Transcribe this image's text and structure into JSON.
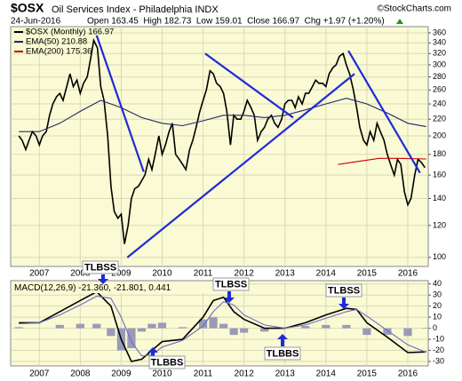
{
  "chart_data": [
    {
      "type": "line",
      "title": "$OSX",
      "subtitle": "Oil Services Index - Philadelphia INDX",
      "source": "©StockCharts.com",
      "date": "24-Jun-2016",
      "stats": "Open 163.45  High 182.73  Low 159.01  Close 166.97  Chg +1.97 (+1.20%)",
      "log_scale": true,
      "grid": true,
      "ylim": [
        95,
        373
      ],
      "yticks": [
        100,
        120,
        140,
        160,
        180,
        200,
        220,
        240,
        260,
        280,
        300,
        320,
        340,
        360
      ],
      "xlim": [
        2006.3,
        2016.5
      ],
      "xticks": [
        2007,
        2008,
        2009,
        2010,
        2011,
        2012,
        2013,
        2014,
        2015,
        2016
      ],
      "series": [
        {
          "name": "$OSX (Monthly) 166.97",
          "color": "#000000",
          "x": [
            2006.5,
            2006.58,
            2006.67,
            2006.75,
            2006.83,
            2006.92,
            2007,
            2007.08,
            2007.17,
            2007.25,
            2007.33,
            2007.42,
            2007.5,
            2007.58,
            2007.67,
            2007.75,
            2007.83,
            2007.92,
            2008,
            2008.08,
            2008.17,
            2008.25,
            2008.33,
            2008.42,
            2008.5,
            2008.58,
            2008.67,
            2008.75,
            2008.83,
            2008.92,
            2009,
            2009.08,
            2009.17,
            2009.25,
            2009.33,
            2009.42,
            2009.5,
            2009.58,
            2009.67,
            2009.75,
            2009.83,
            2009.92,
            2010,
            2010.08,
            2010.17,
            2010.25,
            2010.33,
            2010.42,
            2010.5,
            2010.58,
            2010.67,
            2010.75,
            2010.83,
            2010.92,
            2011,
            2011.08,
            2011.17,
            2011.25,
            2011.33,
            2011.42,
            2011.5,
            2011.58,
            2011.67,
            2011.75,
            2011.83,
            2011.92,
            2012,
            2012.08,
            2012.17,
            2012.25,
            2012.33,
            2012.42,
            2012.5,
            2012.58,
            2012.67,
            2012.75,
            2012.83,
            2012.92,
            2013,
            2013.08,
            2013.17,
            2013.25,
            2013.33,
            2013.42,
            2013.5,
            2013.58,
            2013.67,
            2013.75,
            2013.83,
            2013.92,
            2014,
            2014.08,
            2014.17,
            2014.25,
            2014.33,
            2014.42,
            2014.5,
            2014.58,
            2014.67,
            2014.75,
            2014.83,
            2014.92,
            2015,
            2015.08,
            2015.17,
            2015.25,
            2015.33,
            2015.42,
            2015.5,
            2015.58,
            2015.67,
            2015.75,
            2015.83,
            2015.92,
            2016,
            2016.08,
            2016.17,
            2016.25,
            2016.33,
            2016.42
          ],
          "values": [
            200,
            195,
            185,
            195,
            205,
            200,
            190,
            200,
            205,
            225,
            240,
            250,
            255,
            245,
            265,
            285,
            265,
            275,
            255,
            270,
            280,
            310,
            345,
            330,
            265,
            245,
            200,
            150,
            130,
            125,
            128,
            108,
            120,
            140,
            148,
            150,
            155,
            160,
            175,
            165,
            180,
            200,
            180,
            190,
            205,
            215,
            180,
            175,
            170,
            165,
            185,
            195,
            210,
            230,
            245,
            260,
            290,
            285,
            270,
            265,
            255,
            230,
            190,
            225,
            220,
            220,
            230,
            245,
            235,
            225,
            195,
            205,
            210,
            220,
            225,
            215,
            210,
            220,
            240,
            245,
            245,
            235,
            250,
            240,
            255,
            255,
            265,
            275,
            270,
            270,
            265,
            285,
            295,
            300,
            315,
            320,
            300,
            285,
            260,
            235,
            210,
            195,
            190,
            205,
            195,
            215,
            205,
            195,
            180,
            170,
            160,
            175,
            170,
            145,
            135,
            140,
            160,
            175,
            172,
            166.97
          ]
        },
        {
          "name": "EMA(50) 210.88",
          "color": "#1f2a6b",
          "x": [
            2006.5,
            2007,
            2007.5,
            2008,
            2008.5,
            2009,
            2009.5,
            2010,
            2010.5,
            2011,
            2011.5,
            2012,
            2012.5,
            2013,
            2013.5,
            2014,
            2014.5,
            2015,
            2015.5,
            2016,
            2016.45
          ],
          "values": [
            205,
            205,
            215,
            230,
            245,
            235,
            222,
            215,
            212,
            218,
            225,
            225,
            222,
            225,
            232,
            240,
            248,
            240,
            228,
            215,
            210.88
          ]
        },
        {
          "name": "EMA(200) 175.36",
          "color": "#cc0000",
          "x": [
            2014.3,
            2014.8,
            2015.3,
            2015.8,
            2016.45
          ],
          "values": [
            170,
            173,
            176,
            176,
            175.36
          ]
        }
      ],
      "trendlines": [
        {
          "x": [
            2008.4,
            2009.55
          ],
          "y": [
            355,
            163
          ]
        },
        {
          "x": [
            2009.15,
            2014.7
          ],
          "y": [
            100,
            285
          ]
        },
        {
          "x": [
            2011.05,
            2013.2
          ],
          "y": [
            320,
            222
          ]
        },
        {
          "x": [
            2014.55,
            2016.3
          ],
          "y": [
            325,
            162
          ]
        }
      ],
      "annotations": [
        "TLBSS",
        "TLBBS",
        "TLBSS",
        "TLBBS",
        "TLBSS"
      ]
    },
    {
      "type": "line",
      "title": "MACD(12,26,9) -21.360, -21.801, 0.441",
      "grid": true,
      "ylim": [
        -34,
        43
      ],
      "yticks": [
        -30,
        -20,
        -10,
        0,
        10,
        20,
        30,
        40
      ],
      "xlim": [
        2006.3,
        2016.5
      ],
      "xticks": [
        2007,
        2008,
        2009,
        2010,
        2011,
        2012,
        2013,
        2014,
        2015,
        2016
      ],
      "series": [
        {
          "type": "bar",
          "color": "#9a9ab8",
          "x": [
            2006.5,
            2007,
            2007.5,
            2008,
            2008.4,
            2008.75,
            2009,
            2009.25,
            2009.5,
            2009.75,
            2010,
            2010.5,
            2011,
            2011.25,
            2011.5,
            2011.75,
            2012,
            2012.5,
            2013,
            2013.5,
            2014,
            2014.5,
            2014.75,
            2015,
            2015.5,
            2016,
            2016.45
          ],
          "values": [
            1,
            0,
            3,
            4,
            4,
            -7,
            -20,
            -18,
            -3,
            4,
            5,
            1,
            8,
            10,
            4,
            -6,
            -4,
            -3,
            0,
            2,
            3,
            3,
            0,
            -6,
            -6,
            -7,
            0.441
          ]
        },
        {
          "color": "#000000",
          "x": [
            2006.5,
            2007,
            2007.5,
            2008,
            2008.4,
            2008.75,
            2009,
            2009.25,
            2009.5,
            2009.75,
            2010,
            2010.5,
            2011,
            2011.25,
            2011.5,
            2011.75,
            2012,
            2012.5,
            2013,
            2013.5,
            2014,
            2014.5,
            2014.75,
            2015,
            2015.5,
            2016,
            2016.45
          ],
          "values": [
            5,
            5,
            15,
            25,
            33,
            20,
            -10,
            -30,
            -28,
            -20,
            -12,
            -10,
            10,
            25,
            28,
            15,
            8,
            0,
            0,
            5,
            12,
            18,
            17,
            5,
            -8,
            -22,
            -21.36
          ]
        },
        {
          "color": "#6c6cc0",
          "x": [
            2006.5,
            2007,
            2007.5,
            2008,
            2008.4,
            2008.75,
            2009,
            2009.25,
            2009.5,
            2009.75,
            2010,
            2010.5,
            2011,
            2011.25,
            2011.5,
            2011.75,
            2012,
            2012.5,
            2013,
            2013.5,
            2014,
            2014.5,
            2014.75,
            2015,
            2015.5,
            2016,
            2016.45
          ],
          "values": [
            4,
            5,
            12,
            21,
            29,
            27,
            10,
            -12,
            -25,
            -24,
            -17,
            -11,
            2,
            15,
            24,
            21,
            12,
            3,
            0,
            3,
            9,
            15,
            17,
            11,
            -2,
            -15,
            -21.801
          ]
        }
      ]
    }
  ]
}
